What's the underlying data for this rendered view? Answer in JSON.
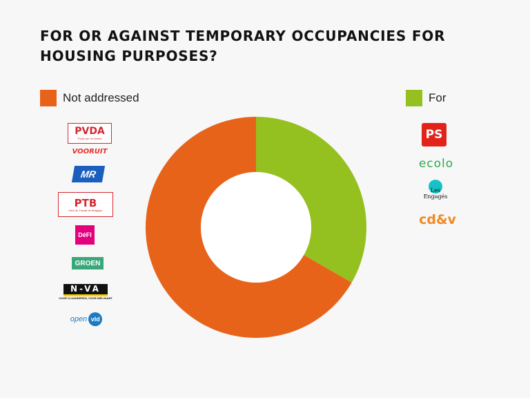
{
  "title": "FOR OR AGAINST TEMPORARY OCCUPANCIES FOR HOUSING PURPOSES?",
  "chart_data": {
    "type": "pie",
    "donut": true,
    "categories": [
      "For",
      "Not addressed"
    ],
    "values": [
      4,
      8
    ],
    "colors": [
      "#94c11f",
      "#e8631a"
    ],
    "legend": [
      {
        "label": "Not addressed",
        "color": "#e8631a",
        "position": "top-left",
        "parties": [
          "PVDA",
          "VOORUIT",
          "MR",
          "PTB",
          "DéFI",
          "GROEN",
          "N-VA",
          "open vld"
        ]
      },
      {
        "label": "For",
        "color": "#94c11f",
        "position": "top-right",
        "parties": [
          "PS",
          "ecolo",
          "Les Engagés",
          "cd&v"
        ]
      }
    ]
  },
  "logos": {
    "pvda": {
      "text": "PVDA",
      "sub": "Partij van de Arbeid",
      "color": "#d7262f"
    },
    "vooruit": {
      "text": "VOORUIT",
      "color": "#e4322b"
    },
    "mr": {
      "text": "MR",
      "color": "#1b5ebe"
    },
    "ptb": {
      "text": "PTB",
      "sub": "Parti du Travail de Belgique",
      "color": "#d7262f"
    },
    "defi": {
      "text": "DéFI",
      "color": "#e3007d"
    },
    "groen": {
      "text": "GROEN",
      "color": "#3aa779"
    },
    "nva": {
      "text": "N-VA",
      "sub": "VOOR VLAANDEREN, VOOR WELVAART",
      "color": "#111111",
      "accent": "#fdd200"
    },
    "openvld": {
      "text_a": "open",
      "text_b": "vld",
      "color": "#1c7ac2"
    },
    "ps": {
      "text": "PS",
      "color": "#e2231a"
    },
    "ecolo": {
      "text": "ecolo",
      "color": "#2fa84f"
    },
    "engages": {
      "text_a": "Les",
      "text_b": "Engagés",
      "color": "#111111",
      "accent": "#16c2c8"
    },
    "cdv": {
      "text": "cd&v",
      "color": "#f08a24"
    }
  }
}
